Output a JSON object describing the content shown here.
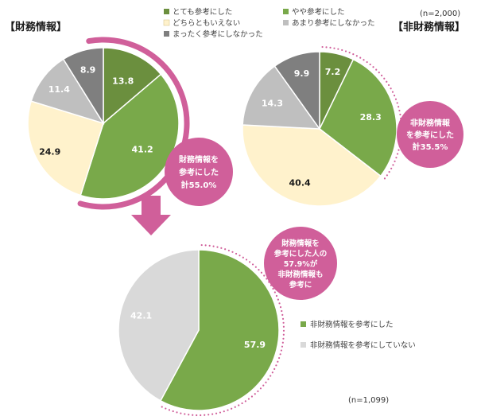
{
  "colors": {
    "dark_green": "#6b8f3e",
    "green": "#79a94a",
    "cream": "#fff2cc",
    "light_gray": "#bfbfbf",
    "dark_gray": "#7f7f7f",
    "pale_gray": "#d9d9d9",
    "magenta": "#d05f9a",
    "white": "#ffffff"
  },
  "chart_data": [
    {
      "type": "pie",
      "title": "【財務情報】",
      "categories": [
        "とても参考にした",
        "やや参考にした",
        "どちらともいえない",
        "あまり参考にしなかった",
        "まったく参考にしなかった"
      ],
      "values": [
        13.8,
        41.2,
        24.9,
        11.4,
        8.9
      ],
      "labels": [
        "13.8",
        "41.2",
        "24.9",
        "11.4",
        "8.9"
      ],
      "callout": [
        "財務情報を",
        "参考にした",
        "計55.0%"
      ]
    },
    {
      "type": "pie",
      "title": "【非財務情報】",
      "n_label": "(n=2,000)",
      "categories": [
        "とても参考にした",
        "やや参考にした",
        "どちらともいえない",
        "あまり参考にしなかった",
        "まったく参考にしなかった"
      ],
      "values": [
        7.2,
        28.3,
        40.4,
        14.3,
        9.9
      ],
      "labels": [
        "7.2",
        "28.3",
        "40.4",
        "14.3",
        "9.9"
      ],
      "callout": [
        "非財務情報",
        "を参考にした",
        "計35.5%"
      ]
    },
    {
      "type": "pie",
      "n_label": "(n=1,099)",
      "categories": [
        "非財務情報を参考にした",
        "非財務情報を参考にしていない"
      ],
      "values": [
        57.9,
        42.1
      ],
      "labels": [
        "57.9",
        "42.1"
      ],
      "callout": [
        "財務情報を",
        "参考にした人の",
        "57.9%が",
        "非財務情報も",
        "参考に"
      ]
    }
  ],
  "legend_top": {
    "items": [
      {
        "label": "とても参考にした",
        "color": "#6b8f3e"
      },
      {
        "label": "やや参考にした",
        "color": "#79a94a"
      },
      {
        "label": "どちらともいえない",
        "color": "#fff2cc"
      },
      {
        "label": "あまり参考にしなかった",
        "color": "#bfbfbf"
      },
      {
        "label": "まったく参考にしなかった",
        "color": "#7f7f7f"
      }
    ]
  },
  "legend_bottom": {
    "items": [
      {
        "label": "非財務情報を参考にした",
        "color": "#79a94a"
      },
      {
        "label": "非財務情報を参考にしていない",
        "color": "#d9d9d9"
      }
    ]
  }
}
